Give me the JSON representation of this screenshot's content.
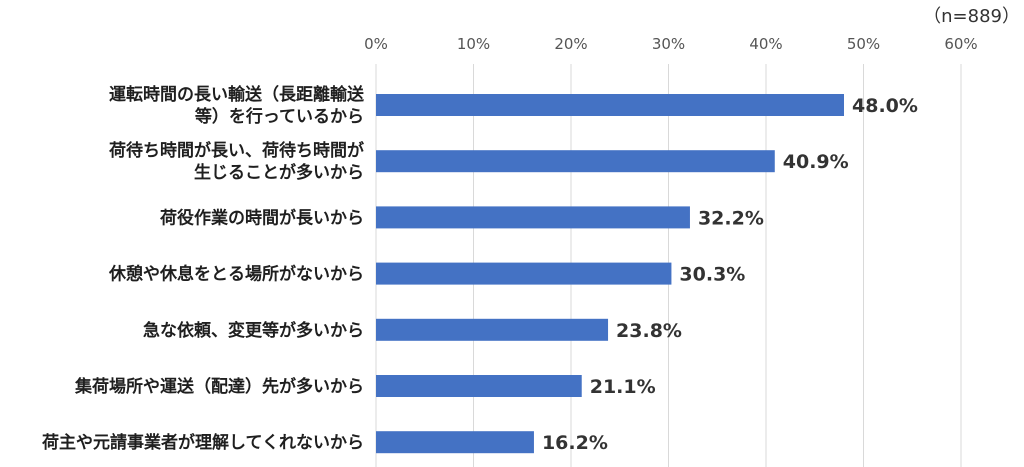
{
  "chart_data": {
    "type": "bar",
    "orientation": "horizontal",
    "sample_note": "（n=889）",
    "categories": [
      [
        "運転時間の長い輸送（長距離輸送",
        "等）を行っているから"
      ],
      [
        "荷待ち時間が長い、荷待ち時間が",
        "生じることが多いから"
      ],
      [
        "荷役作業の時間が長いから"
      ],
      [
        "休憩や休息をとる場所がないから"
      ],
      [
        "急な依頼、変更等が多いから"
      ],
      [
        "集荷場所や運送（配達）先が多いから"
      ],
      [
        "荷主や元請事業者が理解してくれないから"
      ]
    ],
    "values": [
      48.0,
      40.9,
      32.2,
      30.3,
      23.8,
      21.1,
      16.2
    ],
    "value_labels": [
      "48.0%",
      "40.9%",
      "32.2%",
      "30.3%",
      "23.8%",
      "21.1%",
      "16.2%"
    ],
    "x_ticks": [
      "0%",
      "10%",
      "20%",
      "30%",
      "40%",
      "50%",
      "60%"
    ],
    "xlim": [
      0,
      60
    ],
    "axis_position": "top",
    "grid": true,
    "bar_color": "#4472C4",
    "grid_color": "#d9d9d9",
    "legend": "none"
  }
}
